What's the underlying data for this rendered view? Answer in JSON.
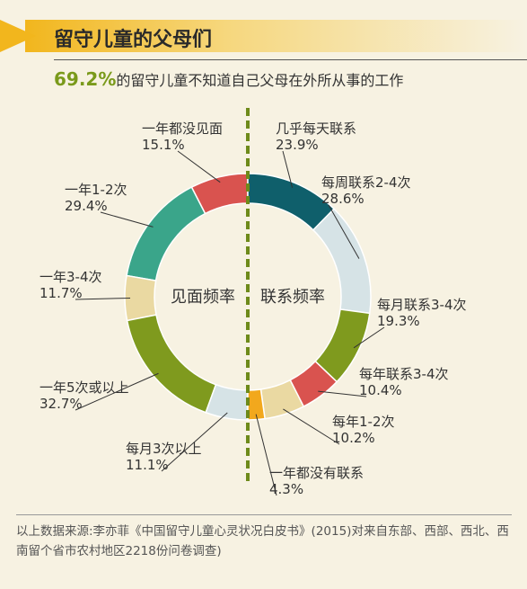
{
  "title": "留守儿童的父母们",
  "headline": {
    "pct": "69.2%",
    "text": "的留守儿童不知道自己父母在外所从事的工作"
  },
  "chart_data": {
    "type": "pie",
    "subtype": "split-donut",
    "halves": [
      {
        "name": "见面频率",
        "side": "left",
        "slices": [
          {
            "label": "一年都没见面",
            "value": 15.1,
            "display": "15.1%",
            "color": "#d9534f"
          },
          {
            "label": "一年1-2次",
            "value": 29.4,
            "display": "29.4%",
            "color": "#3aa58a"
          },
          {
            "label": "一年3-4次",
            "value": 11.7,
            "display": "11.7%",
            "color": "#ead9a2"
          },
          {
            "label": "一年5次或以上",
            "value": 32.7,
            "display": "32.7%",
            "color": "#7f9a1e"
          },
          {
            "label": "每月3次以上",
            "value": 11.1,
            "display": "11.1%",
            "color": "#d6e3e6"
          }
        ]
      },
      {
        "name": "联系频率",
        "side": "right",
        "slices": [
          {
            "label": "几乎每天联系",
            "value": 23.9,
            "display": "23.9%",
            "color": "#0f5f6b"
          },
          {
            "label": "每周联系2-4次",
            "value": 28.6,
            "display": "28.6%",
            "color": "#d6e3e6"
          },
          {
            "label": "每月联系3-4次",
            "value": 19.3,
            "display": "19.3%",
            "color": "#7f9a1e"
          },
          {
            "label": "每年联系3-4次",
            "value": 10.4,
            "display": "10.4%",
            "color": "#d9534f"
          },
          {
            "label": "每年1-2次",
            "value": 10.2,
            "display": "10.2%",
            "color": "#ead9a2"
          },
          {
            "label": "一年都没有联系",
            "value": 4.3,
            "display": "4.3%",
            "color": "#f2a81d"
          }
        ]
      }
    ]
  },
  "footer": "以上数据来源:李亦菲《中国留守儿童心灵状况白皮书》(2015)对来自东部、西部、西北、西南留个省市农村地区2218份问卷调查)"
}
